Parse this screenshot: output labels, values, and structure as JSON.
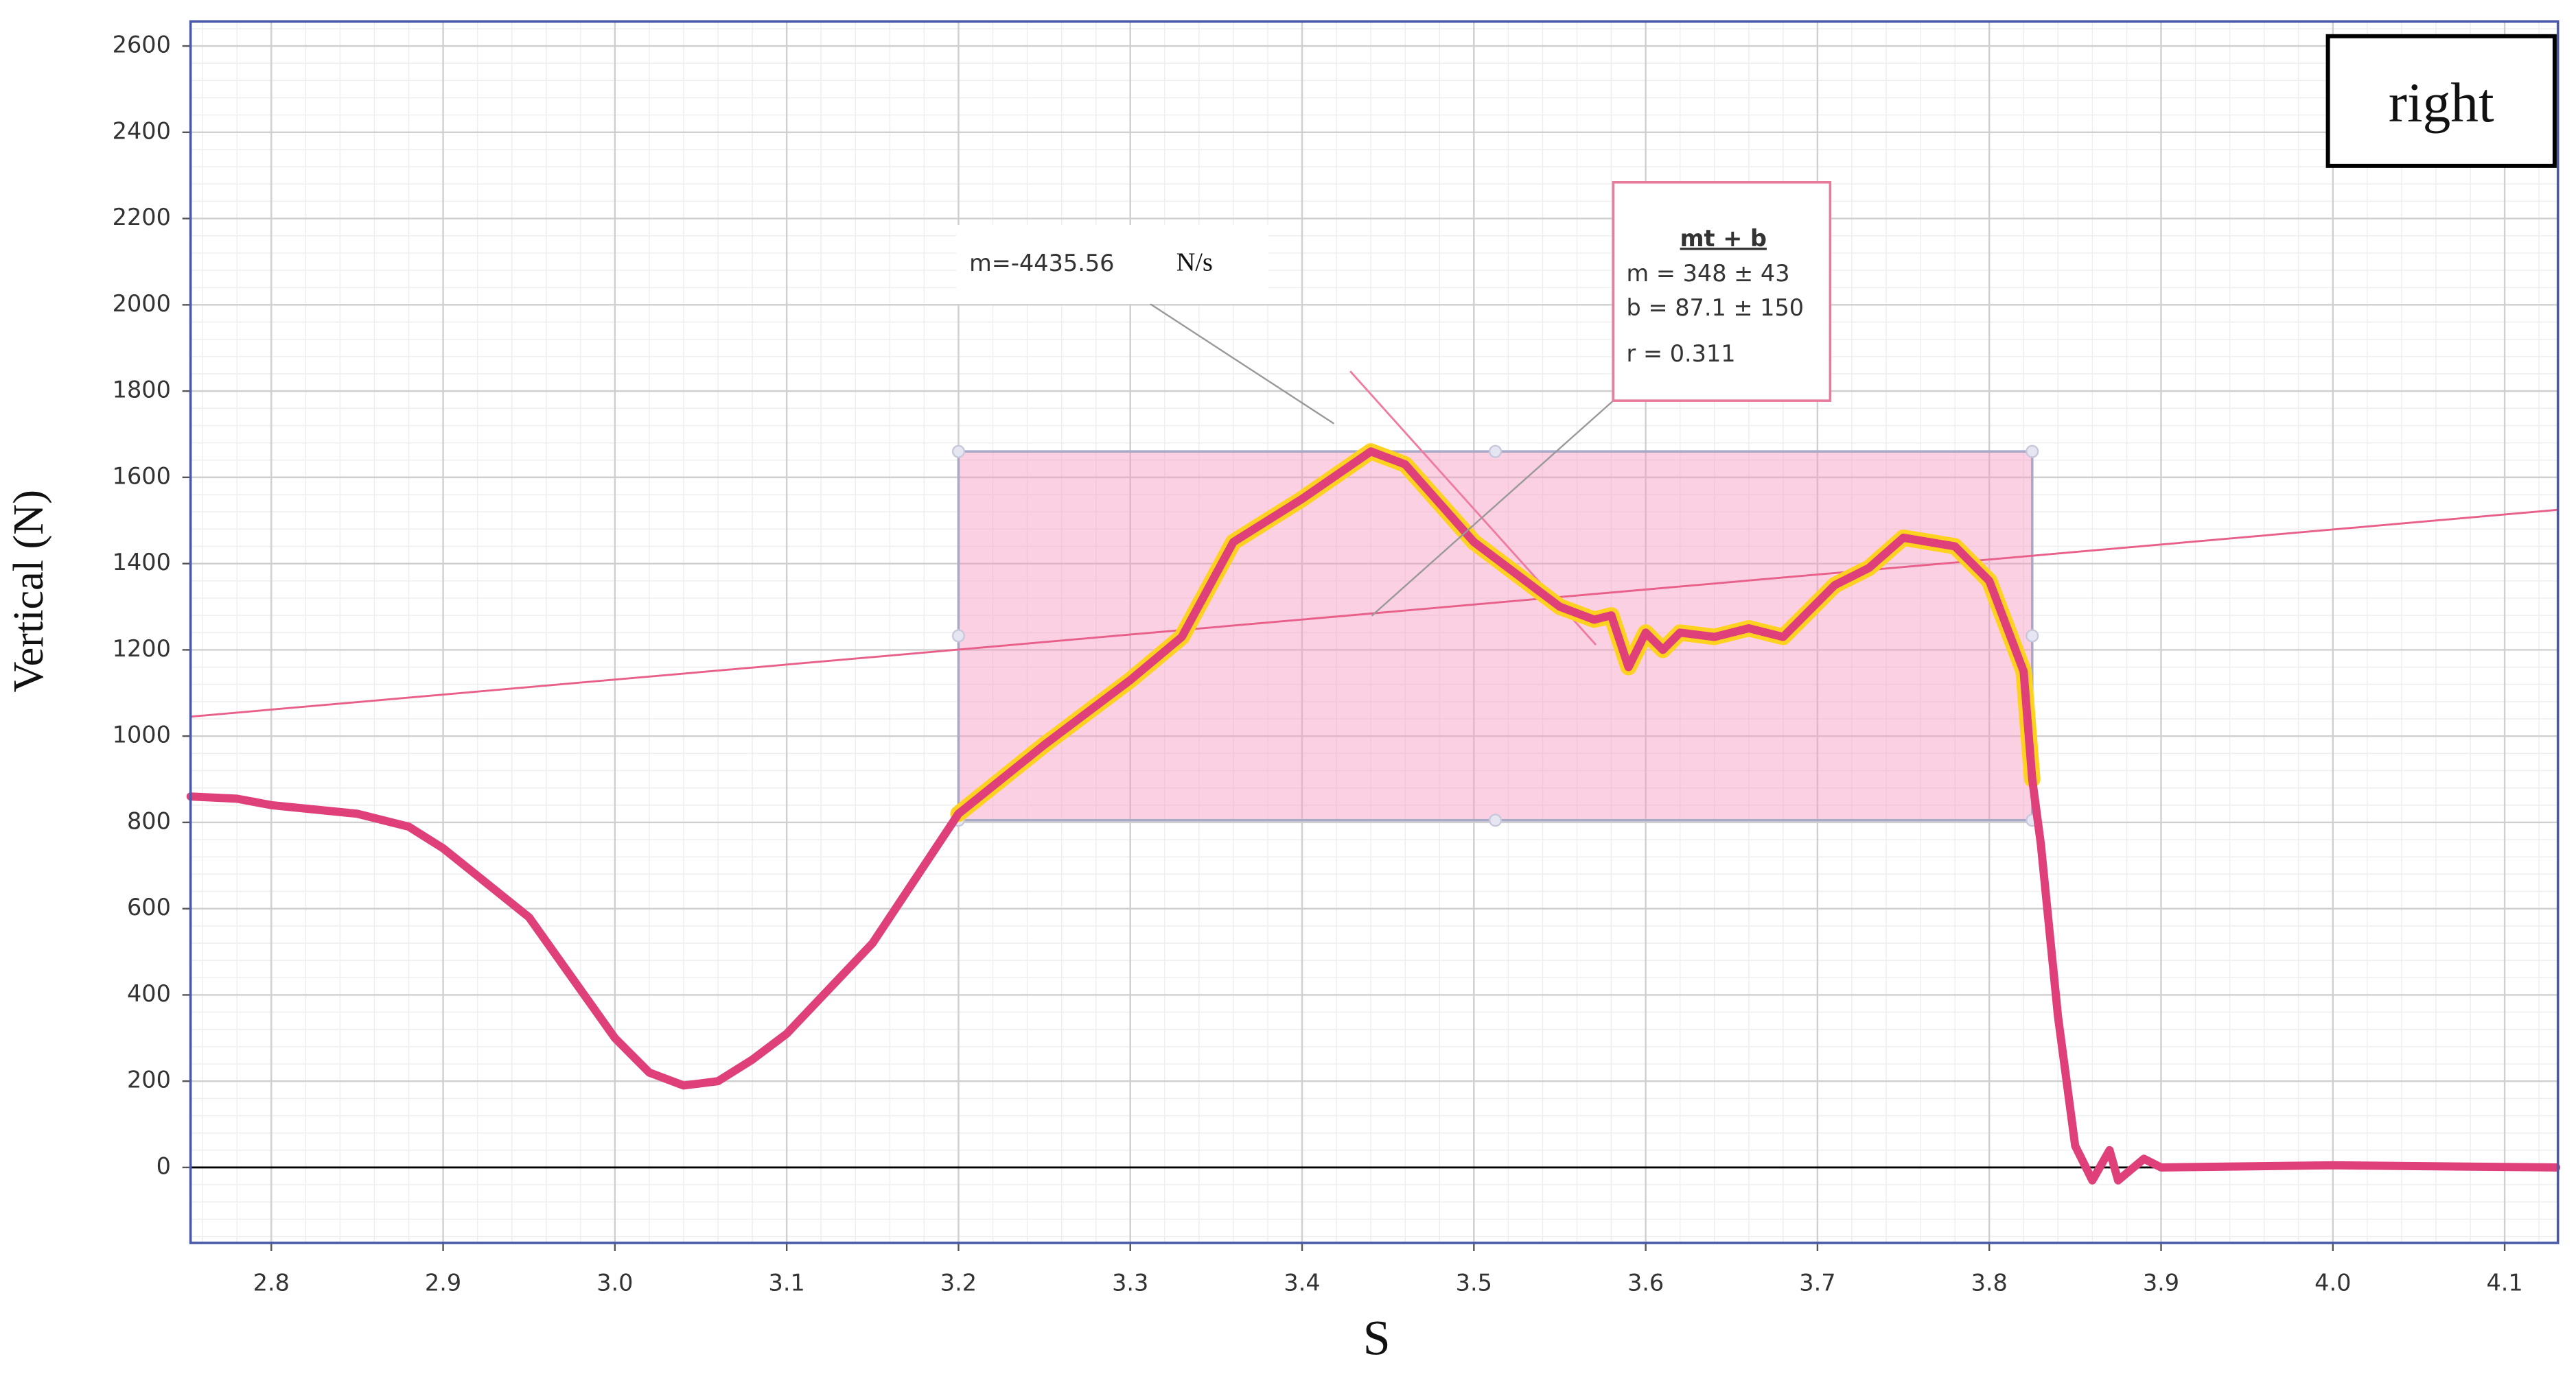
{
  "chart_data": {
    "type": "line",
    "xlabel": "S",
    "ylabel": "Vertical (N)",
    "xlim": [
      2.753,
      4.131
    ],
    "ylim": [
      -175,
      2657
    ],
    "xticks": [
      2.8,
      2.9,
      {
        "value": 3,
        "label": "3.0"
      },
      3.1,
      3.2,
      3.3,
      3.4,
      3.5,
      3.6,
      3.7,
      3.8,
      3.9,
      {
        "value": 4,
        "label": "4.0"
      },
      4.1
    ],
    "yticks": [
      0,
      200,
      400,
      600,
      800,
      1000,
      1200,
      1400,
      1600,
      1800,
      2000,
      2200,
      2400,
      2600
    ],
    "grid": true,
    "series": [
      {
        "name": "right",
        "color": "#e0407a",
        "x": [
          2.753,
          2.78,
          2.8,
          2.85,
          2.88,
          2.9,
          2.95,
          3.0,
          3.02,
          3.04,
          3.06,
          3.08,
          3.1,
          3.15,
          3.18,
          3.2,
          3.25,
          3.3,
          3.33,
          3.36,
          3.4,
          3.44,
          3.46,
          3.5,
          3.52,
          3.55,
          3.57,
          3.58,
          3.59,
          3.6,
          3.61,
          3.62,
          3.64,
          3.66,
          3.68,
          3.71,
          3.73,
          3.75,
          3.78,
          3.8,
          3.82,
          3.825,
          3.83,
          3.84,
          3.85,
          3.86,
          3.87,
          3.875,
          3.89,
          3.9,
          4.0,
          4.13
        ],
        "values": [
          860,
          855,
          840,
          820,
          790,
          740,
          580,
          300,
          220,
          190,
          200,
          250,
          310,
          520,
          700,
          820,
          980,
          1130,
          1230,
          1450,
          1550,
          1660,
          1630,
          1450,
          1390,
          1300,
          1270,
          1280,
          1160,
          1240,
          1200,
          1240,
          1230,
          1250,
          1230,
          1350,
          1390,
          1460,
          1440,
          1360,
          1150,
          900,
          750,
          350,
          50,
          -30,
          40,
          -30,
          20,
          0,
          5,
          0
        ]
      }
    ],
    "selection": {
      "x": [
        3.2,
        3.825
      ],
      "y": [
        805,
        1660
      ]
    },
    "fit": {
      "title": "mt + b",
      "m_label": "m =",
      "m": 348,
      "pm": "±",
      "m_err": 43,
      "b_label": "b =",
      "b": 87.1,
      "b_err": 150,
      "r_label": "r =",
      "r": 0.311
    },
    "tangent": {
      "label": "m=-4435.56",
      "unit": "N/s",
      "slope": -4435.56,
      "x": [
        3.428,
        3.571
      ],
      "y0": 1846
    }
  }
}
